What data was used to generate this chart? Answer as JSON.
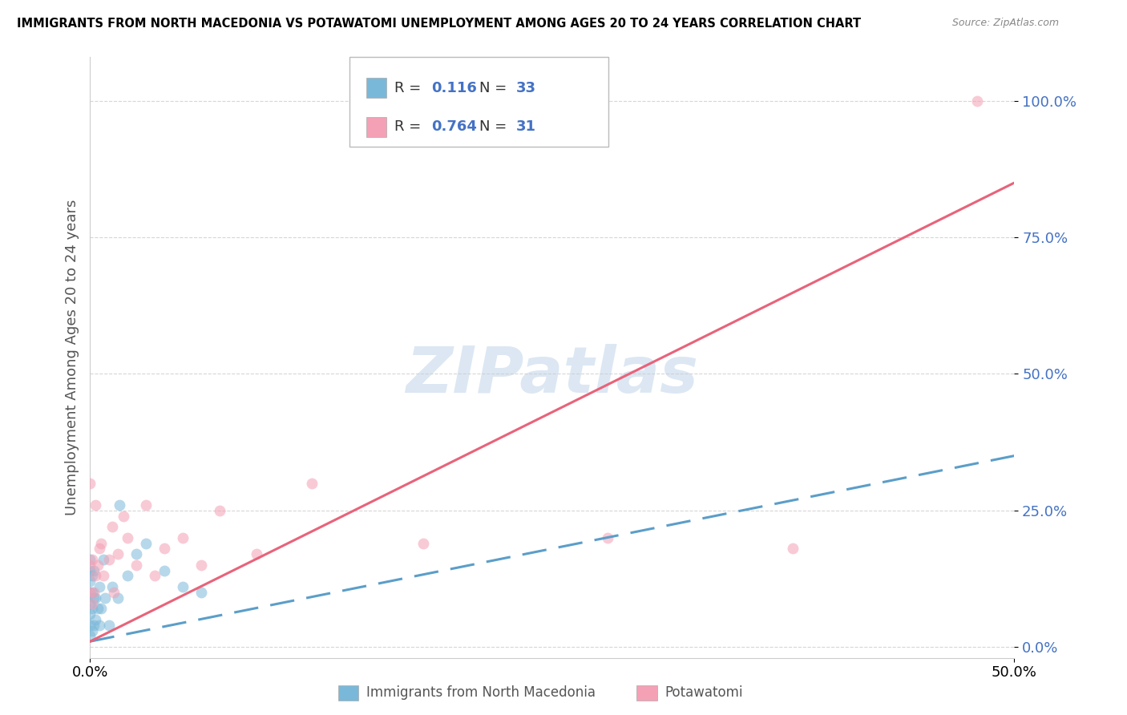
{
  "title": "IMMIGRANTS FROM NORTH MACEDONIA VS POTAWATOMI UNEMPLOYMENT AMONG AGES 20 TO 24 YEARS CORRELATION CHART",
  "source": "Source: ZipAtlas.com",
  "ylabel": "Unemployment Among Ages 20 to 24 years",
  "xmin": 0.0,
  "xmax": 0.5,
  "ymin": -0.02,
  "ymax": 1.08,
  "yticks": [
    0.0,
    0.25,
    0.5,
    0.75,
    1.0
  ],
  "ytick_labels": [
    "0.0%",
    "25.0%",
    "50.0%",
    "75.0%",
    "100.0%"
  ],
  "xtick_labels": [
    "0.0%",
    "50.0%"
  ],
  "watermark": "ZIPatlas",
  "legend_label1": "Immigrants from North Macedonia",
  "legend_label2": "Potawatomi",
  "r1": 0.116,
  "n1": 33,
  "r2": 0.764,
  "n2": 31,
  "blue_color": "#7ab8d9",
  "pink_color": "#f4a0b5",
  "blue_line_color": "#5b9ec9",
  "pink_line_color": "#e8637a",
  "scatter_alpha": 0.55,
  "scatter_size": 100,
  "blue_line_x0": 0.0,
  "blue_line_y0": 0.01,
  "blue_line_x1": 0.5,
  "blue_line_y1": 0.35,
  "pink_line_x0": 0.0,
  "pink_line_y0": 0.01,
  "pink_line_x1": 0.5,
  "pink_line_y1": 0.85,
  "blue_points_x": [
    0.0,
    0.0,
    0.0,
    0.0,
    0.0,
    0.0,
    0.0,
    0.0,
    0.001,
    0.001,
    0.001,
    0.001,
    0.002,
    0.002,
    0.002,
    0.003,
    0.003,
    0.004,
    0.005,
    0.005,
    0.006,
    0.007,
    0.008,
    0.01,
    0.012,
    0.015,
    0.016,
    0.02,
    0.025,
    0.03,
    0.04,
    0.05,
    0.06
  ],
  "blue_points_y": [
    0.02,
    0.04,
    0.06,
    0.08,
    0.1,
    0.12,
    0.14,
    0.16,
    0.03,
    0.07,
    0.1,
    0.13,
    0.04,
    0.09,
    0.14,
    0.05,
    0.09,
    0.07,
    0.04,
    0.11,
    0.07,
    0.16,
    0.09,
    0.04,
    0.11,
    0.09,
    0.26,
    0.13,
    0.17,
    0.19,
    0.14,
    0.11,
    0.1
  ],
  "pink_points_x": [
    0.0,
    0.0,
    0.0,
    0.001,
    0.001,
    0.002,
    0.003,
    0.003,
    0.004,
    0.005,
    0.006,
    0.007,
    0.01,
    0.012,
    0.013,
    0.015,
    0.018,
    0.02,
    0.025,
    0.03,
    0.035,
    0.04,
    0.05,
    0.06,
    0.07,
    0.09,
    0.12,
    0.18,
    0.28,
    0.38,
    0.48
  ],
  "pink_points_y": [
    0.1,
    0.15,
    0.3,
    0.08,
    0.16,
    0.1,
    0.13,
    0.26,
    0.15,
    0.18,
    0.19,
    0.13,
    0.16,
    0.22,
    0.1,
    0.17,
    0.24,
    0.2,
    0.15,
    0.26,
    0.13,
    0.18,
    0.2,
    0.15,
    0.25,
    0.17,
    0.3,
    0.19,
    0.2,
    0.18,
    1.0
  ]
}
